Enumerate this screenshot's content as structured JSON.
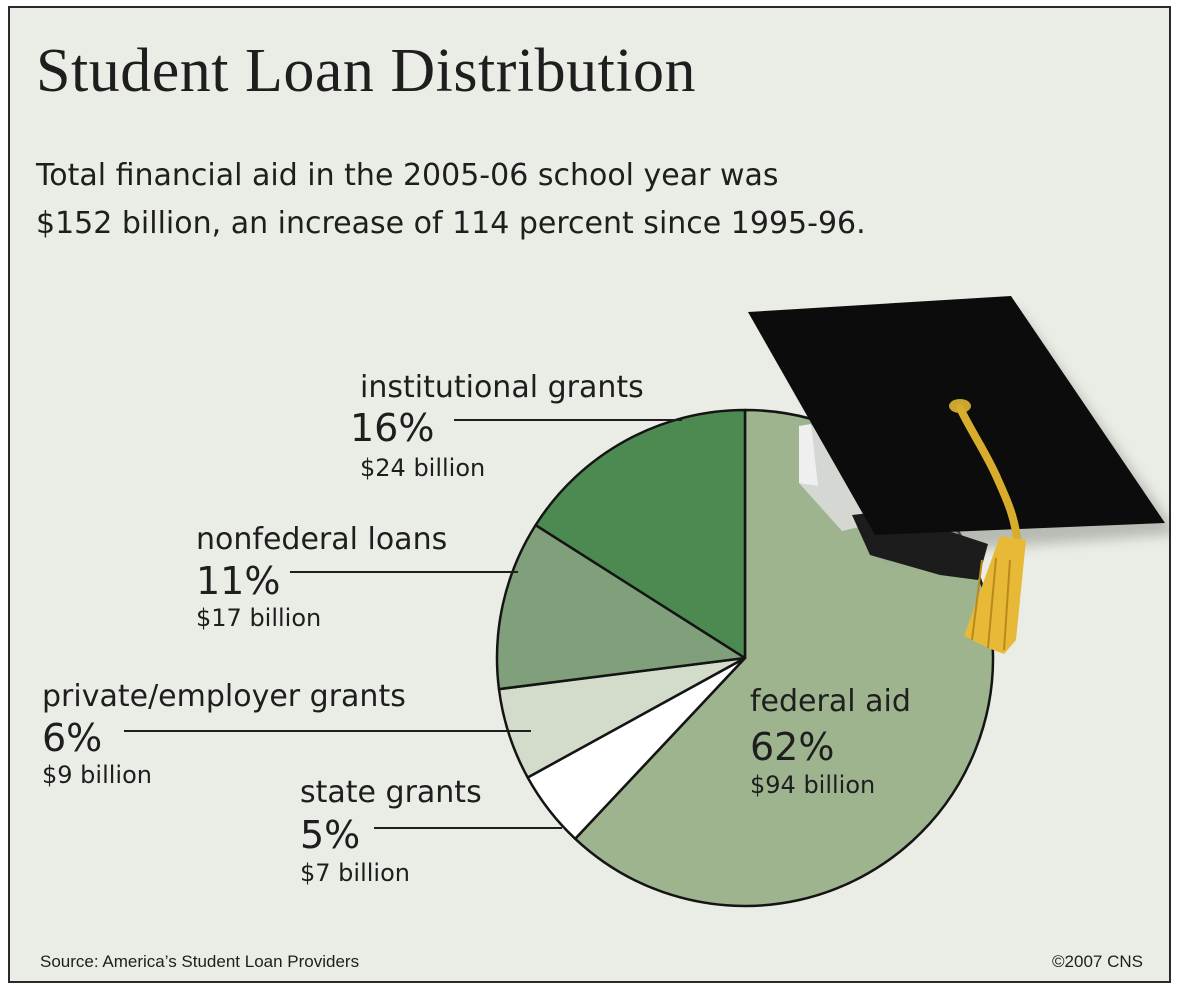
{
  "title": "Student Loan Distribution",
  "subtitle": [
    "Total financial aid in the 2005-06 school year was",
    "$152 billion, an increase of 114 percent since 1995-96."
  ],
  "source": "Source: America’s Student Loan Providers",
  "copyright": "©2007 CNS",
  "chart_data": {
    "type": "pie",
    "title": "Student Loan Distribution",
    "start": "12 o'clock",
    "direction": "clockwise",
    "slices": [
      {
        "name": "federal aid",
        "percent_label": "62%",
        "amount_label": "$94 billion",
        "value": 62,
        "amount_billion": 94,
        "color": "#9db48f"
      },
      {
        "name": "state grants",
        "percent_label": "5%",
        "amount_label": "$7 billion",
        "value": 5,
        "amount_billion": 7,
        "color": "#ffffff"
      },
      {
        "name": "private/employer grants",
        "percent_label": "6%",
        "amount_label": "$9 billion",
        "value": 6,
        "amount_billion": 9,
        "color": "#d3dbca"
      },
      {
        "name": "nonfederal loans",
        "percent_label": "11%",
        "amount_label": "$17 billion",
        "value": 11,
        "amount_billion": 17,
        "color": "#7fa07a"
      },
      {
        "name": "institutional grants",
        "percent_label": "16%",
        "amount_label": "$24 billion",
        "value": 16,
        "amount_billion": 24,
        "color": "#4d8a52"
      }
    ],
    "decoration": "graduation-cap"
  }
}
